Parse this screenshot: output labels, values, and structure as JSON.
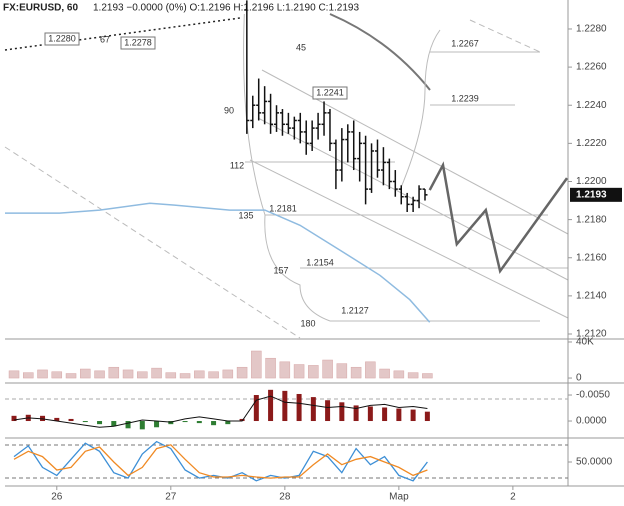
{
  "chart_data": [
    {
      "type": "ohlc",
      "title": "FX:EURUSD, 60",
      "subtitle": "1.2193 −0.0000 (0%) O:1.2196 H:1.2196 L:1.2190 C:1.2193",
      "color": "#111111",
      "x": [
        40,
        41.25,
        42.5,
        43.75,
        45,
        46.25,
        47.5,
        48.75,
        50,
        51.25,
        52.5,
        53.75,
        55,
        56.25,
        57.5,
        58.75,
        60,
        61.25,
        62.5,
        63.75,
        65,
        66.25,
        67.5,
        68.75,
        70,
        71.25,
        72.5,
        73.75,
        75,
        76.25,
        77.5
      ],
      "open": [
        1.229,
        1.2232,
        1.224,
        1.2236,
        1.2242,
        1.223,
        1.2236,
        1.223,
        1.2228,
        1.2232,
        1.2226,
        1.222,
        1.2228,
        1.223,
        1.2236,
        1.222,
        1.2206,
        1.2222,
        1.2226,
        1.2212,
        1.222,
        1.2196,
        1.2216,
        1.2206,
        1.221,
        1.22,
        1.2196,
        1.2192,
        1.2188,
        1.219,
        1.2196
      ],
      "high": [
        1.2295,
        1.2245,
        1.2254,
        1.225,
        1.2246,
        1.224,
        1.2238,
        1.2236,
        1.2234,
        1.2236,
        1.2232,
        1.2232,
        1.2236,
        1.2242,
        1.2238,
        1.2222,
        1.2228,
        1.223,
        1.2232,
        1.2226,
        1.2224,
        1.222,
        1.2222,
        1.2218,
        1.2212,
        1.2206,
        1.2198,
        1.2194,
        1.2192,
        1.2198,
        1.2196
      ],
      "low": [
        1.2225,
        1.2228,
        1.2232,
        1.223,
        1.2225,
        1.2226,
        1.2224,
        1.2225,
        1.2222,
        1.222,
        1.2214,
        1.2216,
        1.2222,
        1.2224,
        1.2216,
        1.2196,
        1.22,
        1.221,
        1.2206,
        1.22,
        1.2188,
        1.2194,
        1.2202,
        1.2198,
        1.2196,
        1.2192,
        1.2188,
        1.2184,
        1.2184,
        1.2186,
        1.219
      ],
      "close": [
        1.2232,
        1.224,
        1.2236,
        1.2242,
        1.223,
        1.2236,
        1.223,
        1.2228,
        1.2232,
        1.2226,
        1.222,
        1.2228,
        1.223,
        1.2236,
        1.222,
        1.2206,
        1.2222,
        1.2226,
        1.2212,
        1.222,
        1.2196,
        1.2216,
        1.2206,
        1.221,
        1.22,
        1.2196,
        1.2192,
        1.2188,
        1.219,
        1.2196,
        1.2193
      ],
      "lines": [
        {
          "color": "#8fbbe0",
          "x": [
            -10.9,
            0.6,
            9,
            19.6,
            24.8,
            36.4,
            43.8,
            51.2,
            59.6,
            68,
            74.3,
            78.5
          ],
          "values": [
            1.21834,
            1.21834,
            1.2185,
            1.21886,
            1.21876,
            1.2185,
            1.2185,
            1.2177,
            1.2164,
            1.21508,
            1.2138,
            1.21262
          ]
        },
        {
          "color": "#666666",
          "x": [
            78.5,
            81.3,
            84.2,
            90.3,
            93.3,
            107.4
          ],
          "values": [
            1.21955,
            1.22086,
            1.21671,
            1.2185,
            1.2153,
            1.22018
          ]
        }
      ],
      "annotations": [
        "1.2280",
        "67",
        "1.2278",
        "45",
        "1.2267",
        "1.2241",
        "1.2239",
        "90",
        "112",
        "1.2181",
        "135",
        "1.2154",
        "157",
        "1.2127",
        "180"
      ],
      "last_price": {
        "value": 1.2193,
        "label": "1.2193"
      },
      "xlim": [
        -10.9,
        107.6
      ],
      "xticks": [
        {
          "value": 0,
          "label": "26"
        },
        {
          "value": 24,
          "label": "27"
        },
        {
          "value": 48,
          "label": "28"
        },
        {
          "value": 72,
          "label": "Мар"
        },
        {
          "value": 96,
          "label": "2"
        }
      ],
      "ylim": [
        1.21179,
        1.22952
      ],
      "yticks": [
        {
          "value": 1.212,
          "label": "1.2120"
        },
        {
          "value": 1.214,
          "label": "1.2140"
        },
        {
          "value": 1.216,
          "label": "1.2160"
        },
        {
          "value": 1.218,
          "label": "1.2180"
        },
        {
          "value": 1.22,
          "label": "1.2200"
        },
        {
          "value": 1.222,
          "label": "1.2220"
        },
        {
          "value": 1.224,
          "label": "1.2240"
        },
        {
          "value": 1.226,
          "label": "1.2260"
        },
        {
          "value": 1.228,
          "label": "1.2280"
        }
      ]
    },
    {
      "type": "bar",
      "color": "#e3c7c7",
      "x": [
        -9,
        -6,
        -3,
        0,
        3,
        6,
        9,
        12,
        15,
        18,
        21,
        24,
        27,
        30,
        33,
        36,
        39,
        42,
        45,
        48,
        51,
        54,
        57,
        60,
        63,
        66,
        69,
        72,
        75,
        78
      ],
      "values": [
        8000,
        6000,
        9000,
        7000,
        5000,
        10000,
        8000,
        12000,
        9000,
        7000,
        11000,
        6000,
        5000,
        8000,
        7000,
        9000,
        12000,
        30000,
        22000,
        18000,
        15000,
        14000,
        20000,
        16000,
        12000,
        18000,
        10000,
        8000,
        6000,
        5000
      ],
      "ylim": [
        -4400,
        42200
      ],
      "yticks": [
        {
          "value": 40000,
          "label": "40K"
        },
        0
      ]
    },
    {
      "type": "histogram-line",
      "positive_color": "#2e7d32",
      "negative_color": "#8b1a1a",
      "line_color": "#111111",
      "x": [
        -9,
        -6,
        -3,
        0,
        3,
        6,
        9,
        12,
        15,
        18,
        21,
        24,
        27,
        30,
        33,
        36,
        39,
        42,
        45,
        48,
        51,
        54,
        57,
        60,
        63,
        66,
        69,
        72,
        75,
        78
      ],
      "values": [
        -0.001,
        -0.0012,
        -0.001,
        -0.0006,
        -0.0004,
        0.0002,
        0.0006,
        0.001,
        0.0014,
        0.0016,
        0.0012,
        0.0006,
        0.0002,
        0.0004,
        0.0008,
        0.0006,
        -0.0004,
        -0.005,
        -0.006,
        -0.0058,
        -0.0052,
        -0.0046,
        -0.004,
        -0.0036,
        -0.003,
        -0.0028,
        -0.0026,
        -0.0024,
        -0.0022,
        -0.0018
      ],
      "line": [
        -0.0002,
        -0.0006,
        -0.0004,
        0,
        0.0004,
        0.0008,
        0.0012,
        0.001,
        0.0004,
        -0.0002,
        0,
        0.0002,
        -0.0004,
        -0.0008,
        -0.0004,
        0,
        0,
        -0.004,
        -0.0048,
        -0.0036,
        -0.0034,
        -0.003,
        -0.0026,
        -0.0028,
        -0.0024,
        -0.003,
        -0.0032,
        -0.0026,
        -0.0028,
        -0.0024
      ],
      "ylim": [
        0.00288,
        -0.00712
      ],
      "yticks": [
        {
          "value": 0,
          "label": "0.0000"
        },
        {
          "value": -0.005,
          "label": "-0.0050"
        }
      ]
    },
    {
      "type": "line",
      "x": [
        -9,
        -6,
        -3,
        0,
        3,
        6,
        9,
        12,
        15,
        18,
        21,
        24,
        27,
        30,
        33,
        36,
        39,
        42,
        45,
        48,
        51,
        54,
        57,
        60,
        63,
        66,
        69,
        72,
        75,
        78
      ],
      "series": [
        {
          "color": "#3d8fd6",
          "values": [
            60,
            80,
            40,
            25,
            55,
            85,
            70,
            30,
            20,
            65,
            88,
            75,
            35,
            20,
            25,
            20,
            30,
            15,
            25,
            20,
            25,
            70,
            60,
            30,
            75,
            45,
            60,
            25,
            15,
            50
          ]
        },
        {
          "color": "#f08a24",
          "values": [
            55,
            70,
            60,
            35,
            40,
            70,
            78,
            50,
            25,
            40,
            75,
            82,
            55,
            30,
            22,
            22,
            25,
            22,
            20,
            22,
            22,
            45,
            65,
            45,
            55,
            60,
            50,
            40,
            25,
            35
          ]
        }
      ],
      "ylim": [
        9,
        91
      ],
      "yticks": [
        {
          "value": 50,
          "label": "50.0000"
        }
      ]
    }
  ]
}
